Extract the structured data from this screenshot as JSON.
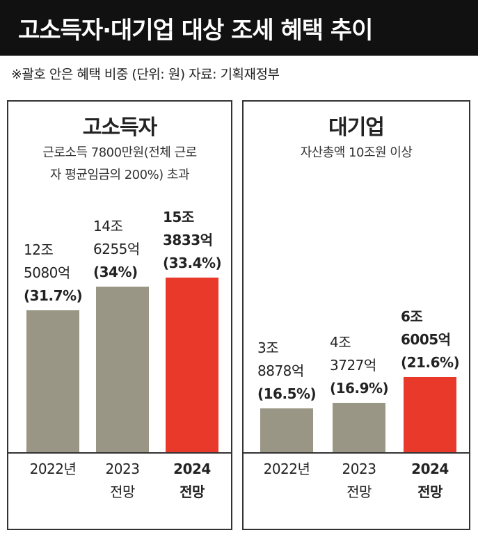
{
  "title": "고소득자·대기업 대상 조세 혜택 추이",
  "note": "※괄호 안은 혜택 비중 (단위: 원) 자료: 기획재정부",
  "colors": {
    "normal": "#9a9685",
    "highlight": "#e8392b"
  },
  "chart_data": [
    {
      "type": "bar",
      "title": "고소득자",
      "subtitle_lines": [
        "근로소득 7800만원(전체 근로",
        "자 평균임금의 200%) 초과"
      ],
      "categories": [
        "2022년",
        "2023 전망",
        "2024 전망"
      ],
      "category_lines": [
        [
          "2022년"
        ],
        [
          "2023",
          "전망"
        ],
        [
          "2024",
          "전망"
        ]
      ],
      "values": [
        12.508,
        14.6255,
        15.3833
      ],
      "value_labels": [
        {
          "line1": "12조",
          "line2": "5080억",
          "share": "(31.7%)"
        },
        {
          "line1": "14조",
          "line2": "6255억",
          "share": "(34%)"
        },
        {
          "line1": "15조",
          "line2": "3833억",
          "share": "(33.4%)"
        }
      ],
      "shares_percent": [
        31.7,
        34,
        33.4
      ],
      "highlight_index": 2,
      "unit": "조원",
      "ylim": [
        0,
        32
      ],
      "grid": false,
      "legend": "none"
    },
    {
      "type": "bar",
      "title": "대기업",
      "subtitle_lines": [
        "자산총액 10조원 이상"
      ],
      "categories": [
        "2022년",
        "2023 전망",
        "2024 전망"
      ],
      "category_lines": [
        [
          "2022년"
        ],
        [
          "2023",
          "전망"
        ],
        [
          "2024",
          "전망"
        ]
      ],
      "values": [
        3.8878,
        4.3727,
        6.6005
      ],
      "value_labels": [
        {
          "line1": "3조",
          "line2": "8878억",
          "share": "(16.5%)"
        },
        {
          "line1": "4조",
          "line2": "3727억",
          "share": "(16.9%)"
        },
        {
          "line1": "6조",
          "line2": "6005억",
          "share": "(21.6%)"
        }
      ],
      "shares_percent": [
        16.5,
        16.9,
        21.6
      ],
      "highlight_index": 2,
      "unit": "조원",
      "ylim": [
        0,
        32
      ],
      "grid": false,
      "legend": "none"
    }
  ]
}
